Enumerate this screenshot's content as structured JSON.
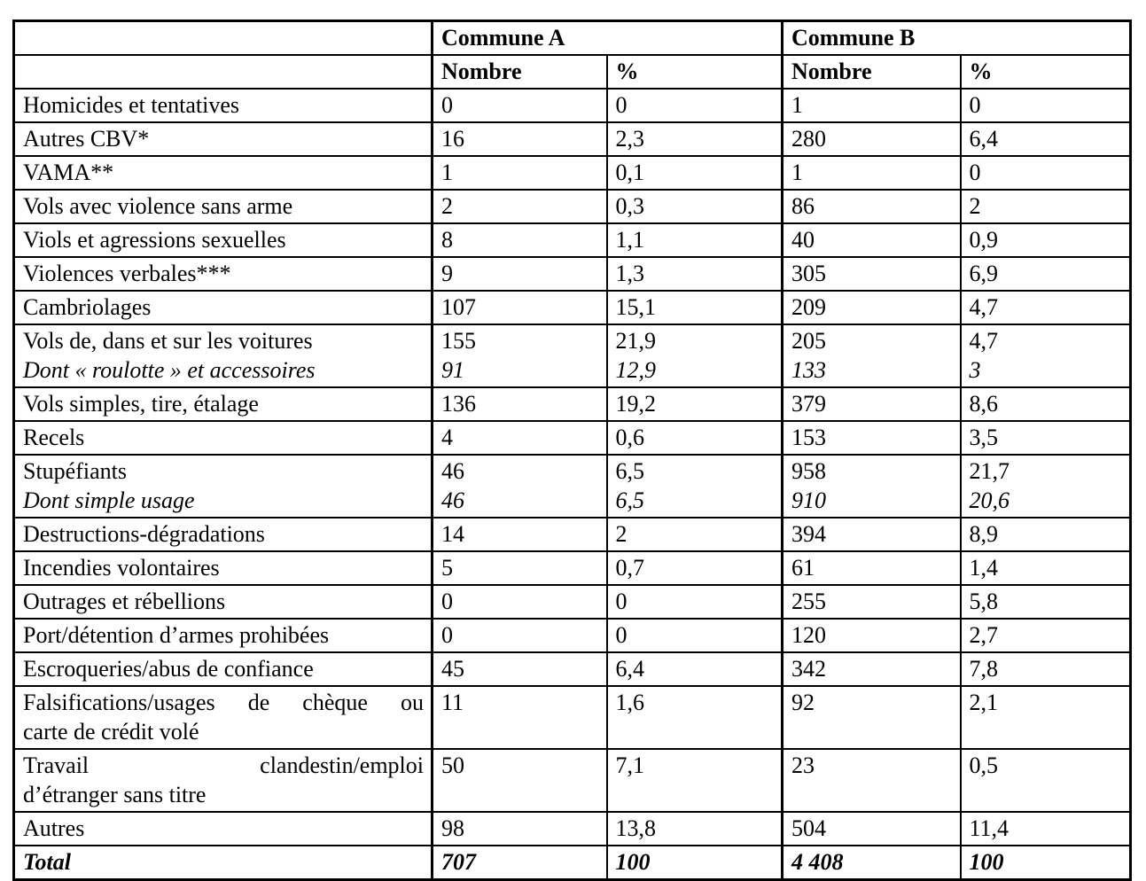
{
  "table": {
    "column_groups": [
      {
        "label": "Commune A"
      },
      {
        "label": "Commune B"
      }
    ],
    "sub_headers": [
      "Nombre",
      "%",
      "Nombre",
      "%"
    ],
    "rows": [
      {
        "label": "Homicides et tentatives",
        "values": [
          "0",
          "0",
          "1",
          "0"
        ]
      },
      {
        "label": "Autres CBV*",
        "values": [
          "16",
          "2,3",
          "280",
          "6,4"
        ]
      },
      {
        "label": "VAMA**",
        "values": [
          "1",
          "0,1",
          "1",
          "0"
        ]
      },
      {
        "label": "Vols avec violence sans arme",
        "values": [
          "2",
          "0,3",
          "86",
          "2"
        ]
      },
      {
        "label": "Viols et agressions sexuelles",
        "values": [
          "8",
          "1,1",
          "40",
          "0,9"
        ]
      },
      {
        "label": "Violences verbales***",
        "values": [
          "9",
          "1,3",
          "305",
          "6,9"
        ]
      },
      {
        "label": "Cambriolages",
        "values": [
          "107",
          "15,1",
          "209",
          "4,7"
        ]
      },
      {
        "label": "Vols de, dans et sur les voitures",
        "sub_label": "Dont « roulotte » et accessoires",
        "values": [
          "155",
          "21,9",
          "205",
          "4,7"
        ],
        "sub_values": [
          "91",
          "12,9",
          "133",
          "3"
        ]
      },
      {
        "label": "Vols simples, tire, étalage",
        "values": [
          "136",
          "19,2",
          "379",
          "8,6"
        ]
      },
      {
        "label": "Recels",
        "values": [
          "4",
          "0,6",
          "153",
          "3,5"
        ]
      },
      {
        "label": "Stupéfiants",
        "sub_label": "Dont simple usage",
        "values": [
          "46",
          "6,5",
          "958",
          "21,7"
        ],
        "sub_values": [
          "46",
          "6,5",
          "910",
          "20,6"
        ]
      },
      {
        "label": "Destructions-dégradations",
        "values": [
          "14",
          "2",
          "394",
          "8,9"
        ]
      },
      {
        "label": "Incendies volontaires",
        "values": [
          "5",
          "0,7",
          "61",
          "1,4"
        ]
      },
      {
        "label": "Outrages et rébellions",
        "values": [
          "0",
          "0",
          "255",
          "5,8"
        ]
      },
      {
        "label": "Port/détention d’armes prohibées",
        "values": [
          "0",
          "0",
          "120",
          "2,7"
        ]
      },
      {
        "label": "Escroqueries/abus de confiance",
        "values": [
          "45",
          "6,4",
          "342",
          "7,8"
        ]
      },
      {
        "label": "Falsifications/usages de chèque ou",
        "label2": "carte de crédit volé",
        "justify": true,
        "values": [
          "11",
          "1,6",
          "92",
          "2,1"
        ]
      },
      {
        "label": "Travail clandestin/emploi",
        "label2": "d’étranger sans titre",
        "justify": true,
        "values": [
          "50",
          "7,1",
          "23",
          "0,5"
        ]
      },
      {
        "label": "Autres",
        "values": [
          "98",
          "13,8",
          "504",
          "11,4"
        ]
      },
      {
        "label": "Total",
        "total": true,
        "values": [
          "707",
          "100",
          "4 408",
          "100"
        ]
      }
    ]
  }
}
